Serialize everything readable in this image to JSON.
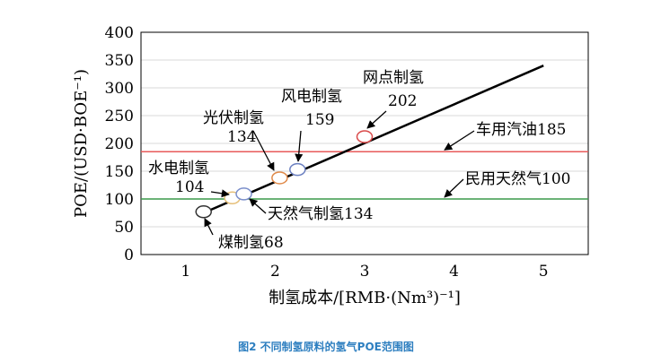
{
  "chart_data": {
    "type": "line",
    "xlabel": "制氢成本/[RMB·(Nm³)⁻¹]",
    "ylabel": "POE/(USD·BOE⁻¹)",
    "xlim": [
      0.5,
      5.5
    ],
    "ylim": [
      0,
      400
    ],
    "xticks": [
      1,
      2,
      3,
      4,
      5
    ],
    "yticks": [
      0,
      50,
      100,
      150,
      200,
      250,
      300,
      350,
      400
    ],
    "grid": "horizontal",
    "series": [
      {
        "x": [
          1.2,
          5.0
        ],
        "y": [
          75,
          340
        ],
        "color": "#000000"
      }
    ],
    "reference_lines": [
      {
        "label": "车用汽油185",
        "y": 185,
        "color": "#e85a5a"
      },
      {
        "label": "民用天然气100",
        "y": 100,
        "color": "#3a9a4a"
      }
    ],
    "points": [
      {
        "label": "煤制氢68",
        "x": 1.2,
        "y": 77,
        "color": "#333333"
      },
      {
        "label": "天然气制氢134",
        "x": 1.52,
        "y": 102,
        "color": "#e6c07a"
      },
      {
        "label": "水电制氢",
        "value_label": "104",
        "x": 1.65,
        "y": 109,
        "color": "#7b8fcb"
      },
      {
        "label": "光伏制氢",
        "value_label": "134",
        "x": 2.05,
        "y": 138,
        "color": "#e08a4a"
      },
      {
        "label": "风电制氢",
        "value_label": "159",
        "x": 2.25,
        "y": 153,
        "color": "#6a7fc0"
      },
      {
        "label": "网点制氢",
        "value_label": "202",
        "x": 3.0,
        "y": 212,
        "color": "#d94a4a"
      }
    ]
  },
  "caption": "图2 不同制氢原料的氢气POE范围图"
}
